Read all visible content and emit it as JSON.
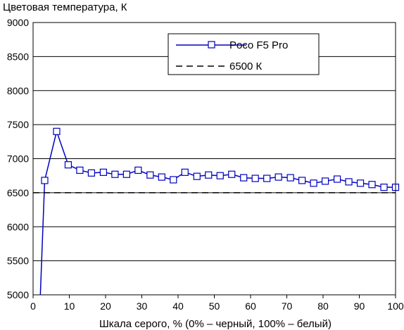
{
  "chart_data": {
    "type": "line",
    "title": "",
    "ylabel": "Цветовая температура, К",
    "xlabel": "Шкала серого, % (0% – черный, 100% – белый)",
    "xlim": [
      0,
      100
    ],
    "ylim": [
      5000,
      9000
    ],
    "x_ticks": [
      "0",
      "10",
      "20",
      "30",
      "40",
      "50",
      "60",
      "70",
      "80",
      "90",
      "100"
    ],
    "y_ticks": [
      "5000",
      "5500",
      "6000",
      "6500",
      "7000",
      "7500",
      "8000",
      "8500",
      "9000"
    ],
    "grid": "horizontal",
    "legend_position": "top-right",
    "series": [
      {
        "name": "Poco F5 Pro",
        "color": "#0000c0",
        "marker": "square",
        "x": [
          2,
          3.2,
          6.5,
          9.7,
          12.9,
          16.1,
          19.4,
          22.6,
          25.8,
          29.0,
          32.3,
          35.5,
          38.7,
          41.9,
          45.2,
          48.4,
          51.6,
          54.8,
          58.1,
          61.3,
          64.5,
          67.7,
          71.0,
          74.2,
          77.4,
          80.6,
          83.9,
          87.1,
          90.3,
          93.5,
          96.8,
          100
        ],
        "y": [
          4990,
          6680,
          7400,
          6910,
          6830,
          6790,
          6800,
          6770,
          6770,
          6830,
          6760,
          6730,
          6690,
          6800,
          6740,
          6760,
          6750,
          6770,
          6720,
          6710,
          6710,
          6730,
          6720,
          6680,
          6640,
          6670,
          6700,
          6660,
          6640,
          6620,
          6580,
          6580
        ],
        "marker_from_index": 1
      },
      {
        "name": "6500 К",
        "color": "#000000",
        "dash": "dashed",
        "x": [
          0,
          100
        ],
        "y": [
          6500,
          6500
        ]
      }
    ]
  }
}
